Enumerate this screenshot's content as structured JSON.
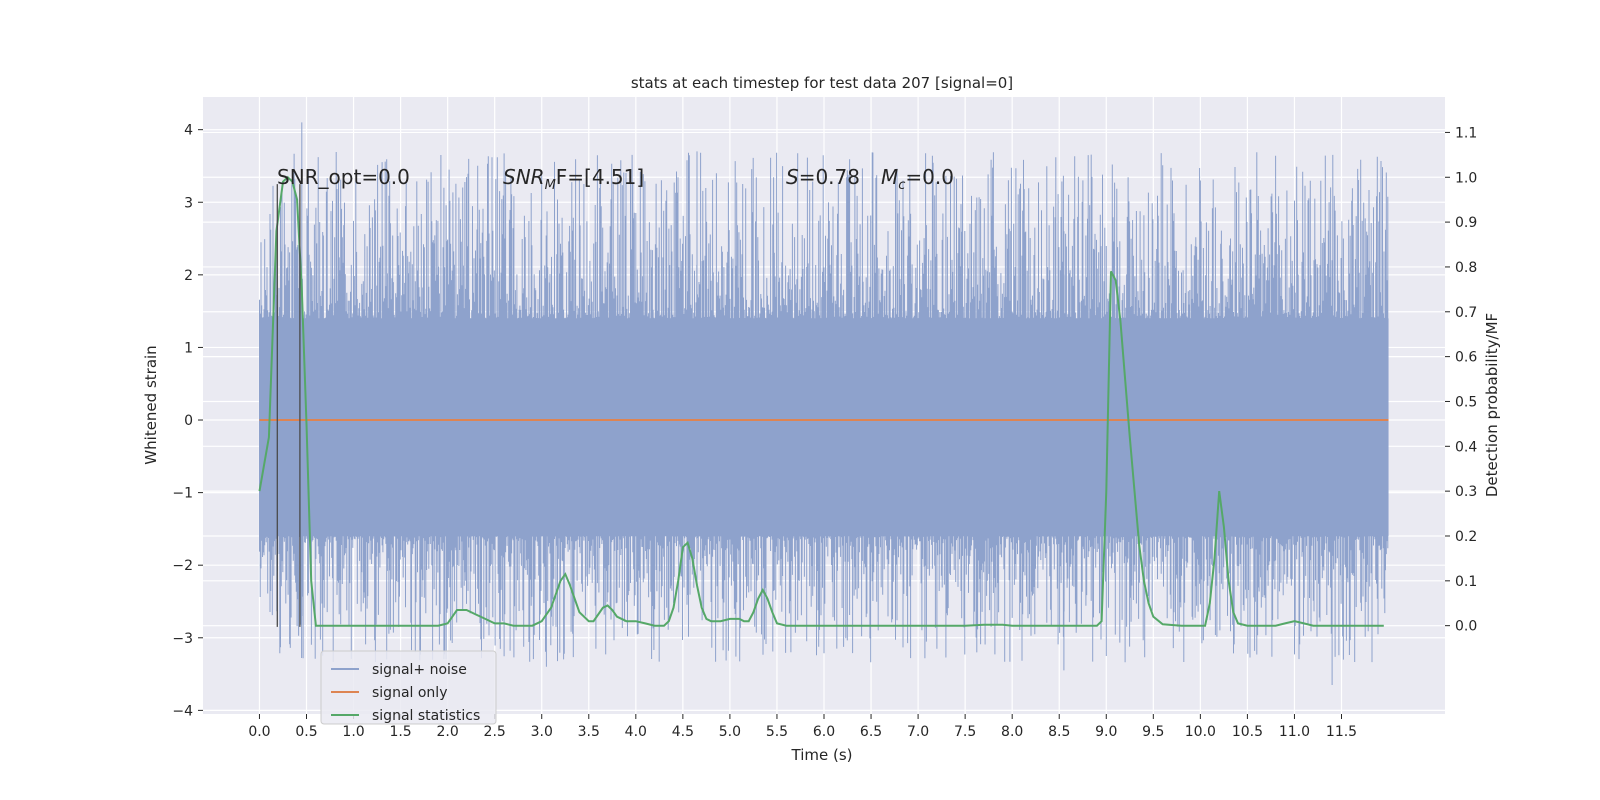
{
  "chart_data": {
    "type": "line",
    "title": "stats at each timestep for test data 207 [signal=0]",
    "xlabel": "Time (s)",
    "ylabel_left": "Whitened strain",
    "ylabel_right": "Detection probability/MF",
    "xlim": [
      -0.6,
      12.6
    ],
    "ylim_left": [
      -4.05,
      4.45
    ],
    "ylim_right": [
      -0.197,
      1.179
    ],
    "x_ticks": [
      0.0,
      0.5,
      1.0,
      1.5,
      2.0,
      2.5,
      3.0,
      3.5,
      4.0,
      4.5,
      5.0,
      5.5,
      6.0,
      6.5,
      7.0,
      7.5,
      8.0,
      8.5,
      9.0,
      9.5,
      10.0,
      10.5,
      11.0,
      11.5
    ],
    "x_tick_labels": [
      "0.0",
      "0.5",
      "1.0",
      "1.5",
      "2.0",
      "2.5",
      "3.0",
      "3.5",
      "4.0",
      "4.5",
      "5.0",
      "5.5",
      "6.0",
      "6.5",
      "7.0",
      "7.5",
      "8.0",
      "8.5",
      "9.0",
      "9.5",
      "10.0",
      "10.5",
      "11.0",
      "11.5"
    ],
    "y_left_ticks": [
      -4,
      -3,
      -2,
      -1,
      0,
      1,
      2,
      3,
      4
    ],
    "y_left_tick_labels": [
      "−4",
      "−3",
      "−2",
      "−1",
      "0",
      "1",
      "2",
      "3",
      "4"
    ],
    "y_right_ticks": [
      0.0,
      0.1,
      0.2,
      0.3,
      0.4,
      0.5,
      0.6,
      0.7,
      0.8,
      0.9,
      1.0,
      1.1
    ],
    "y_right_tick_labels": [
      "0.0",
      "0.1",
      "0.2",
      "0.3",
      "0.4",
      "0.5",
      "0.6",
      "0.7",
      "0.8",
      "0.9",
      "1.0",
      "1.1"
    ],
    "grid": true,
    "legend_position": "lower-left",
    "annotations": {
      "snr_opt": "SNR_opt=0.0",
      "snr_mf_symbol": "SNR",
      "snr_mf_sub": "M",
      "snr_mf_rest": "F=[4.51]",
      "s_symbol": "S",
      "s_rest": "=0.78",
      "mc_symbol": "M",
      "mc_sub": "c",
      "mc_rest": "=0.0"
    },
    "series": [
      {
        "name": "signal+ noise",
        "color": "#8ea2cc",
        "axis": "left",
        "kind": "noise",
        "x_range": [
          0.0,
          12.0
        ],
        "band": [
          -1.6,
          1.4
        ],
        "spike_up_max": 4.1,
        "spike_down_min": -3.65
      },
      {
        "name": "signal only",
        "color": "#dd8452",
        "axis": "left",
        "x": [
          0.0,
          12.0
        ],
        "y": [
          0.0,
          0.0
        ]
      },
      {
        "name": "signal statistics",
        "color": "#55a868",
        "axis": "right",
        "x": [
          0.0,
          0.1,
          0.18,
          0.25,
          0.3,
          0.35,
          0.4,
          0.45,
          0.5,
          0.55,
          0.6,
          0.7,
          0.8,
          1.0,
          1.5,
          1.75,
          1.9,
          2.0,
          2.1,
          2.2,
          2.3,
          2.4,
          2.5,
          2.6,
          2.7,
          2.8,
          2.9,
          3.0,
          3.1,
          3.15,
          3.2,
          3.25,
          3.3,
          3.35,
          3.4,
          3.5,
          3.55,
          3.6,
          3.65,
          3.7,
          3.75,
          3.8,
          3.9,
          4.0,
          4.1,
          4.2,
          4.3,
          4.35,
          4.4,
          4.45,
          4.5,
          4.55,
          4.6,
          4.65,
          4.7,
          4.75,
          4.8,
          4.9,
          5.0,
          5.1,
          5.15,
          5.2,
          5.25,
          5.3,
          5.35,
          5.4,
          5.45,
          5.5,
          5.6,
          5.7,
          6.0,
          6.5,
          7.0,
          7.5,
          7.7,
          7.9,
          8.0,
          8.1,
          8.3,
          8.5,
          8.9,
          8.95,
          9.0,
          9.05,
          9.1,
          9.15,
          9.2,
          9.25,
          9.3,
          9.35,
          9.4,
          9.45,
          9.5,
          9.6,
          9.8,
          9.95,
          10.05,
          10.1,
          10.15,
          10.2,
          10.25,
          10.3,
          10.35,
          10.4,
          10.5,
          10.6,
          10.8,
          10.9,
          11.0,
          11.1,
          11.2,
          11.4,
          11.95
        ],
        "y": [
          0.3,
          0.42,
          0.88,
          0.99,
          1.0,
          0.99,
          0.95,
          0.75,
          0.45,
          0.1,
          0.0,
          0.0,
          0.0,
          0.0,
          0.0,
          0.0,
          0.0,
          0.005,
          0.035,
          0.035,
          0.025,
          0.015,
          0.005,
          0.005,
          0.0,
          0.0,
          0.0,
          0.01,
          0.04,
          0.07,
          0.1,
          0.115,
          0.09,
          0.06,
          0.03,
          0.01,
          0.01,
          0.025,
          0.04,
          0.045,
          0.035,
          0.02,
          0.01,
          0.01,
          0.005,
          0.0,
          0.0,
          0.01,
          0.04,
          0.1,
          0.175,
          0.185,
          0.15,
          0.09,
          0.04,
          0.015,
          0.01,
          0.01,
          0.015,
          0.015,
          0.01,
          0.01,
          0.03,
          0.06,
          0.08,
          0.06,
          0.03,
          0.005,
          0.0,
          0.0,
          0.0,
          0.0,
          0.0,
          0.0,
          0.002,
          0.002,
          0.0,
          0.0,
          0.0,
          0.0,
          0.0,
          0.01,
          0.3,
          0.79,
          0.77,
          0.68,
          0.55,
          0.42,
          0.3,
          0.18,
          0.1,
          0.05,
          0.02,
          0.003,
          0.0,
          0.0,
          0.0,
          0.05,
          0.15,
          0.3,
          0.22,
          0.1,
          0.03,
          0.005,
          0.0,
          0.0,
          0.0,
          0.005,
          0.01,
          0.005,
          0.0,
          0.0,
          0.0
        ]
      },
      {
        "name": "",
        "color": "#4a4a4a",
        "axis": "left",
        "kind": "marker-line",
        "x": [
          0.19,
          0.19
        ],
        "y": [
          -2.85,
          3.25
        ]
      },
      {
        "name": "",
        "color": "#4a4a4a",
        "axis": "left",
        "kind": "marker-line",
        "x": [
          0.43,
          0.43
        ],
        "y": [
          -2.85,
          3.25
        ]
      }
    ],
    "legend": [
      {
        "label": "signal+ noise",
        "color": "#8ea2cc"
      },
      {
        "label": "signal only",
        "color": "#dd8452"
      },
      {
        "label": "signal statistics",
        "color": "#55a868"
      }
    ]
  }
}
